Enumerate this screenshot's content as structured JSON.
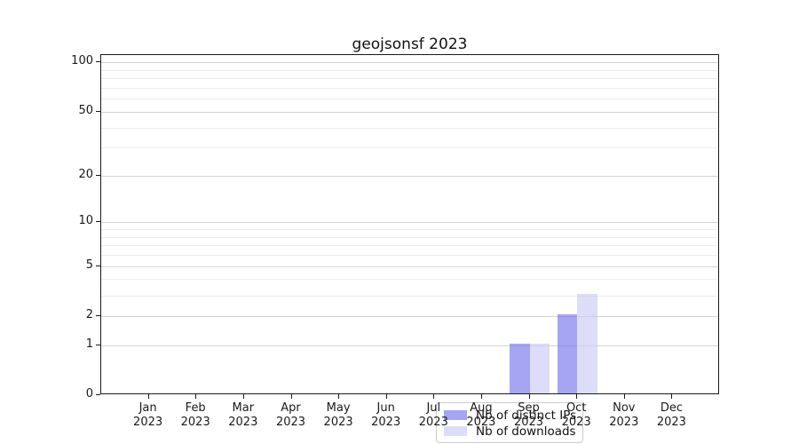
{
  "chart_data": {
    "type": "bar",
    "title": "geojsonsf 2023",
    "categories": [
      "Jan 2023",
      "Feb 2023",
      "Mar 2023",
      "Apr 2023",
      "May 2023",
      "Jun 2023",
      "Jul 2023",
      "Aug 2023",
      "Sep 2023",
      "Oct 2023",
      "Nov 2023",
      "Dec 2023"
    ],
    "series": [
      {
        "name": "Nb of distinct IPs",
        "color": "rgba(110,110,238,0.62)",
        "values": [
          0,
          0,
          0,
          0,
          0,
          0,
          0,
          0,
          1,
          2,
          0,
          0
        ]
      },
      {
        "name": "Nb of downloads",
        "color": "rgba(200,200,245,0.62)",
        "values": [
          0,
          0,
          0,
          0,
          0,
          0,
          0,
          0,
          1,
          3,
          0,
          0
        ]
      }
    ],
    "xlabel": "",
    "ylabel": "",
    "yscale": "log1p",
    "ylim": [
      0,
      111
    ],
    "yticks": [
      0,
      1,
      2,
      5,
      10,
      20,
      50,
      100
    ],
    "yticks_minor": [
      3,
      4,
      6,
      7,
      8,
      9,
      30,
      40,
      60,
      70,
      80,
      90
    ],
    "grid": "horizontal-on",
    "legend_position": "lower-center"
  },
  "colors": {
    "grid_major": "#d4d4d4",
    "grid_minor": "#ededed",
    "axis": "#1a1a1a",
    "background": "#ffffff"
  }
}
